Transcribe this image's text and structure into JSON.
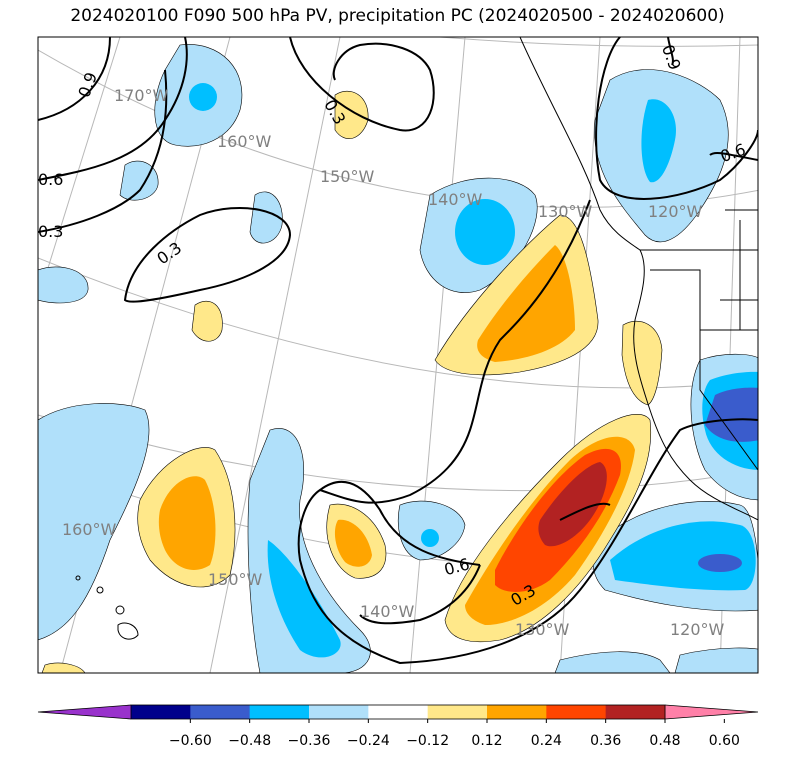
{
  "title": "2024020100 F090 500 hPa PV, precipitation PC (2024020500 - 2024020600)",
  "gridlines": {
    "lon_labels": [
      "170°W",
      "160°W",
      "150°W",
      "140°W",
      "130°W",
      "120°W",
      "160°W",
      "150°W",
      "140°W",
      "130°W",
      "120°W"
    ]
  },
  "contour_labels": [
    "0.9",
    "0.6",
    "0.3",
    "0.3",
    "0.3",
    "0.9",
    "0.6",
    "0.6",
    "0.3"
  ],
  "colorbar": {
    "colors": [
      "#9932cc",
      "#00008b",
      "#3a5ccc",
      "#00bfff",
      "#b0e0fa",
      "#ffffff",
      "#ffe88a",
      "#ffa500",
      "#ff4500",
      "#b22222",
      "#ff80a8"
    ],
    "ticks": [
      "−0.60",
      "−0.48",
      "−0.36",
      "−0.24",
      "−0.12",
      "0.12",
      "0.24",
      "0.36",
      "0.48",
      "0.60"
    ]
  }
}
